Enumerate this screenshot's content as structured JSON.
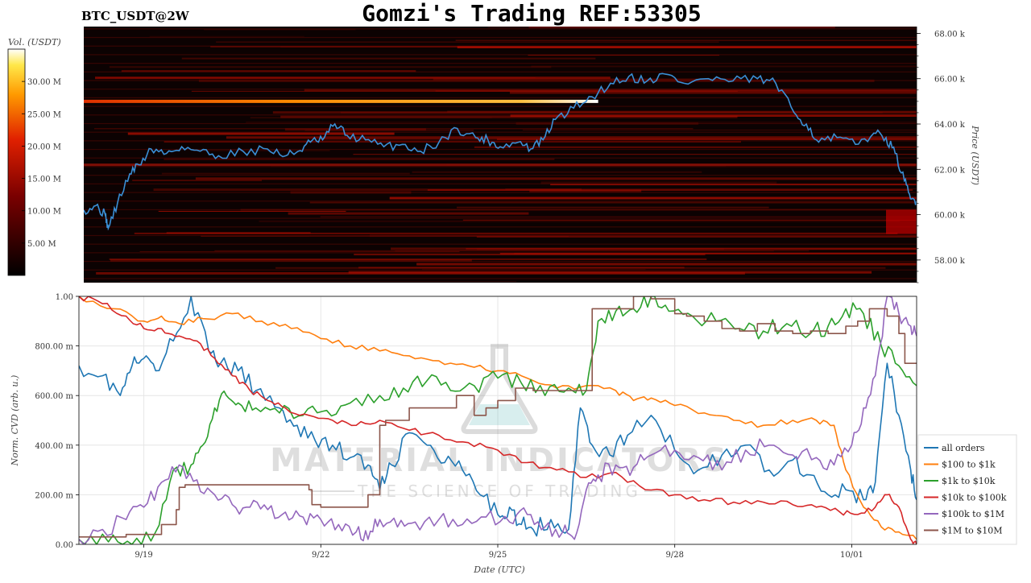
{
  "header": {
    "symbol": "BTC_USDT@2W",
    "title": "Gomzi's Trading REF:53305"
  },
  "watermark": {
    "line1": "MATERIAL INDICATORS",
    "line2": "THE SCIENCE OF TRADING"
  },
  "colors": {
    "all_orders": "#1f77b4",
    "r100_1k": "#ff7f0e",
    "r1k_10k": "#2ca02c",
    "r10k_100k": "#d62728",
    "r100k_1m": "#9467bd",
    "r1m_10m": "#8c564b",
    "price_line": "#3a8fd6",
    "heatmap_bg": "#0c0202"
  },
  "chart_data": [
    {
      "type": "heatmap",
      "colorbar": {
        "label": "Vol. (USDT)",
        "ticks": [
          "30.00 M",
          "25.00 M",
          "20.00 M",
          "15.00 M",
          "10.00 M",
          "5.00 M"
        ],
        "tick_values": [
          30,
          25,
          20,
          15,
          10,
          5
        ],
        "range": [
          0,
          35
        ]
      },
      "ylabel": "Price (USDT)",
      "y_ticks": [
        "68.00 k",
        "66.00 k",
        "64.00 k",
        "62.00 k",
        "60.00 k",
        "58.00 k"
      ],
      "y_tick_values": [
        68000,
        66000,
        64000,
        62000,
        60000,
        58000
      ],
      "ylim": [
        57000,
        68300
      ],
      "xlim": [
        18.6,
        32.2
      ],
      "price_series": {
        "x": [
          18.6,
          18.8,
          18.95,
          19.0,
          19.15,
          19.35,
          19.5,
          19.7,
          19.95,
          20.2,
          20.5,
          20.8,
          21.2,
          21.6,
          21.9,
          22.1,
          22.3,
          22.5,
          22.7,
          22.9,
          23.2,
          23.5,
          23.8,
          24.1,
          24.4,
          24.7,
          25.0,
          25.2,
          25.4,
          25.7,
          25.9,
          26.1,
          26.3,
          26.6,
          26.9,
          27.2,
          27.5,
          27.8,
          28.1,
          28.4,
          28.8,
          29.2,
          29.6,
          29.9,
          30.2,
          30.4,
          30.6,
          30.9,
          31.2,
          31.5,
          31.7,
          31.85,
          32.0,
          32.1,
          32.2
        ],
        "y": [
          60200,
          60400,
          60000,
          59400,
          60500,
          61800,
          62200,
          62900,
          62700,
          63000,
          62800,
          62600,
          62800,
          62900,
          62600,
          62800,
          63200,
          63300,
          64000,
          63500,
          63300,
          63000,
          63100,
          62800,
          63200,
          63800,
          63400,
          63300,
          63000,
          63200,
          62900,
          63300,
          64200,
          64700,
          65200,
          65800,
          66100,
          65900,
          66200,
          65800,
          66000,
          65900,
          66000,
          65800,
          64500,
          64000,
          63200,
          63400,
          63100,
          63600,
          63400,
          62700,
          61500,
          60700,
          60600
        ]
      },
      "bright_levels": [
        {
          "price": 65000,
          "from": 18.6,
          "to": 27.0,
          "intensity": 0.95
        },
        {
          "price": 62200,
          "from": 18.6,
          "to": 32.2,
          "intensity": 0.45
        },
        {
          "price": 60000,
          "from": 31.7,
          "to": 32.2,
          "intensity": 0.9
        }
      ]
    },
    {
      "type": "line",
      "xlabel": "Date (UTC)",
      "ylabel": "Norm. CVD (arb. u.)",
      "x_ticks": [
        "9/19",
        "9/22",
        "9/25",
        "9/28",
        "10/01"
      ],
      "x_tick_values": [
        19,
        22,
        25,
        28,
        31
      ],
      "y_ticks": [
        "1.00",
        "800.00 m",
        "600.00 m",
        "400.00 m",
        "200.00 m",
        "0.00"
      ],
      "y_tick_values": [
        1.0,
        0.8,
        0.6,
        0.4,
        0.2,
        0.0
      ],
      "xlim": [
        17.9,
        32.1
      ],
      "ylim": [
        0,
        1
      ],
      "grid": true,
      "legend_position": "right",
      "series": [
        {
          "name": "all orders",
          "color_key": "all_orders",
          "x": [
            17.9,
            18.3,
            18.6,
            18.8,
            19.0,
            19.2,
            19.5,
            19.8,
            20.1,
            20.3,
            20.6,
            20.9,
            21.3,
            21.6,
            21.9,
            22.2,
            22.5,
            22.8,
            23.0,
            23.2,
            23.5,
            23.8,
            24.1,
            24.4,
            24.7,
            25.0,
            25.2,
            25.4,
            25.6,
            25.9,
            26.2,
            26.4,
            26.6,
            26.9,
            27.2,
            27.6,
            28.0,
            28.4,
            28.8,
            29.2,
            29.6,
            30.0,
            30.3,
            30.6,
            30.9,
            31.2,
            31.4,
            31.6,
            31.8,
            32.0,
            32.1
          ],
          "y": [
            0.72,
            0.68,
            0.6,
            0.72,
            0.75,
            0.7,
            0.82,
            1.0,
            0.78,
            0.73,
            0.7,
            0.62,
            0.55,
            0.48,
            0.42,
            0.4,
            0.35,
            0.32,
            0.22,
            0.32,
            0.45,
            0.4,
            0.33,
            0.3,
            0.2,
            0.12,
            0.15,
            0.08,
            0.06,
            0.1,
            0.06,
            0.55,
            0.4,
            0.36,
            0.44,
            0.52,
            0.38,
            0.3,
            0.36,
            0.4,
            0.3,
            0.34,
            0.28,
            0.2,
            0.22,
            0.18,
            0.25,
            0.73,
            0.52,
            0.3,
            0.18
          ]
        },
        {
          "name": "$100 to $1k",
          "color_key": "r100_1k",
          "x": [
            17.9,
            18.5,
            19.0,
            19.3,
            19.6,
            20.0,
            20.5,
            21.0,
            21.5,
            22.0,
            22.5,
            23.0,
            23.5,
            24.0,
            24.5,
            25.0,
            25.5,
            26.0,
            26.5,
            27.0,
            27.3,
            27.6,
            28.0,
            28.5,
            29.0,
            29.5,
            30.0,
            30.4,
            30.7,
            30.9,
            31.2,
            31.5,
            31.8,
            32.1
          ],
          "y": [
            1.0,
            0.95,
            0.9,
            0.92,
            0.89,
            0.91,
            0.93,
            0.9,
            0.87,
            0.83,
            0.8,
            0.78,
            0.76,
            0.74,
            0.72,
            0.7,
            0.67,
            0.63,
            0.64,
            0.62,
            0.58,
            0.59,
            0.56,
            0.53,
            0.5,
            0.48,
            0.5,
            0.5,
            0.48,
            0.3,
            0.15,
            0.07,
            0.05,
            0.02
          ]
        },
        {
          "name": "$1k to $10k",
          "color_key": "r1k_10k",
          "x": [
            17.9,
            18.4,
            18.8,
            19.2,
            19.5,
            19.8,
            20.0,
            20.2,
            20.4,
            20.6,
            20.9,
            21.3,
            21.7,
            22.1,
            22.5,
            23.0,
            23.4,
            23.8,
            24.2,
            24.6,
            25.0,
            25.4,
            25.8,
            26.2,
            26.5,
            26.7,
            27.0,
            27.3,
            27.6,
            27.9,
            28.3,
            28.7,
            29.1,
            29.5,
            29.9,
            30.3,
            30.6,
            30.9,
            31.2,
            31.5,
            31.8,
            32.1
          ],
          "y": [
            0.02,
            0.01,
            0.0,
            0.05,
            0.3,
            0.32,
            0.4,
            0.55,
            0.6,
            0.57,
            0.55,
            0.53,
            0.52,
            0.54,
            0.57,
            0.6,
            0.63,
            0.66,
            0.62,
            0.64,
            0.67,
            0.65,
            0.6,
            0.63,
            0.62,
            0.9,
            0.94,
            0.95,
            1.0,
            0.94,
            0.92,
            0.9,
            0.87,
            0.86,
            0.89,
            0.85,
            0.88,
            0.95,
            0.93,
            0.8,
            0.72,
            0.64
          ]
        },
        {
          "name": "$10k to $100k",
          "color_key": "r10k_100k",
          "x": [
            17.9,
            18.3,
            18.7,
            19.0,
            19.3,
            19.6,
            19.9,
            20.2,
            20.5,
            20.8,
            21.1,
            21.4,
            21.8,
            22.2,
            22.6,
            23.0,
            23.5,
            24.0,
            24.5,
            25.0,
            25.5,
            26.0,
            26.5,
            27.0,
            27.5,
            28.0,
            28.5,
            29.0,
            29.5,
            30.0,
            30.4,
            30.8,
            31.1,
            31.4,
            31.6,
            31.8,
            32.0,
            32.1
          ],
          "y": [
            1.0,
            0.97,
            0.92,
            0.87,
            0.87,
            0.84,
            0.82,
            0.75,
            0.68,
            0.62,
            0.58,
            0.55,
            0.52,
            0.5,
            0.48,
            0.5,
            0.46,
            0.44,
            0.41,
            0.38,
            0.33,
            0.3,
            0.27,
            0.29,
            0.22,
            0.2,
            0.18,
            0.17,
            0.17,
            0.16,
            0.15,
            0.13,
            0.12,
            0.15,
            0.2,
            0.15,
            0.02,
            0.0
          ]
        },
        {
          "name": "$100k to $1M",
          "color_key": "r100k_1m",
          "x": [
            17.9,
            18.3,
            18.7,
            19.0,
            19.3,
            19.6,
            19.9,
            20.2,
            20.5,
            20.8,
            21.1,
            21.4,
            21.7,
            22.0,
            22.3,
            22.6,
            22.8,
            23.0,
            23.3,
            23.6,
            24.0,
            24.4,
            24.8,
            25.2,
            25.5,
            25.8,
            26.1,
            26.3,
            26.5,
            26.7,
            27.0,
            27.3,
            27.6,
            28.0,
            28.4,
            28.8,
            29.2,
            29.6,
            30.0,
            30.4,
            30.7,
            31.0,
            31.2,
            31.4,
            31.6,
            31.8,
            32.0,
            32.1
          ],
          "y": [
            0.02,
            0.06,
            0.1,
            0.15,
            0.25,
            0.32,
            0.26,
            0.2,
            0.16,
            0.15,
            0.14,
            0.13,
            0.11,
            0.1,
            0.08,
            0.05,
            0.02,
            0.1,
            0.07,
            0.09,
            0.1,
            0.08,
            0.11,
            0.09,
            0.12,
            0.07,
            0.05,
            0.02,
            0.22,
            0.28,
            0.32,
            0.31,
            0.36,
            0.38,
            0.35,
            0.3,
            0.38,
            0.4,
            0.36,
            0.35,
            0.32,
            0.4,
            0.55,
            0.68,
            1.0,
            0.93,
            0.88,
            0.84
          ]
        },
        {
          "name": "$1M to $10M",
          "color_key": "r1m_10m",
          "x": [
            17.9,
            18.3,
            18.7,
            19.0,
            19.3,
            19.55,
            19.6,
            19.7,
            20.0,
            20.5,
            21.0,
            21.4,
            21.8,
            21.85,
            22.0,
            22.5,
            22.8,
            23.0,
            23.1,
            23.5,
            24.0,
            24.3,
            24.6,
            24.8,
            25.0,
            25.3,
            25.6,
            26.0,
            26.3,
            26.5,
            26.6,
            27.0,
            27.3,
            27.6,
            28.0,
            28.2,
            28.5,
            28.8,
            29.1,
            29.4,
            29.7,
            30.0,
            30.3,
            30.6,
            30.9,
            31.1,
            31.3,
            31.6,
            31.8,
            31.9,
            32.1
          ],
          "y": [
            0.03,
            0.03,
            0.04,
            0.04,
            0.08,
            0.14,
            0.23,
            0.24,
            0.24,
            0.24,
            0.24,
            0.24,
            0.22,
            0.16,
            0.15,
            0.15,
            0.2,
            0.48,
            0.5,
            0.55,
            0.55,
            0.6,
            0.52,
            0.55,
            0.58,
            0.63,
            0.62,
            0.62,
            0.62,
            0.62,
            0.95,
            0.95,
            1.0,
            0.99,
            0.93,
            0.92,
            0.9,
            0.87,
            0.86,
            0.89,
            0.86,
            0.85,
            0.86,
            0.85,
            0.88,
            0.9,
            0.95,
            0.92,
            0.85,
            0.73,
            0.73
          ]
        }
      ]
    }
  ]
}
